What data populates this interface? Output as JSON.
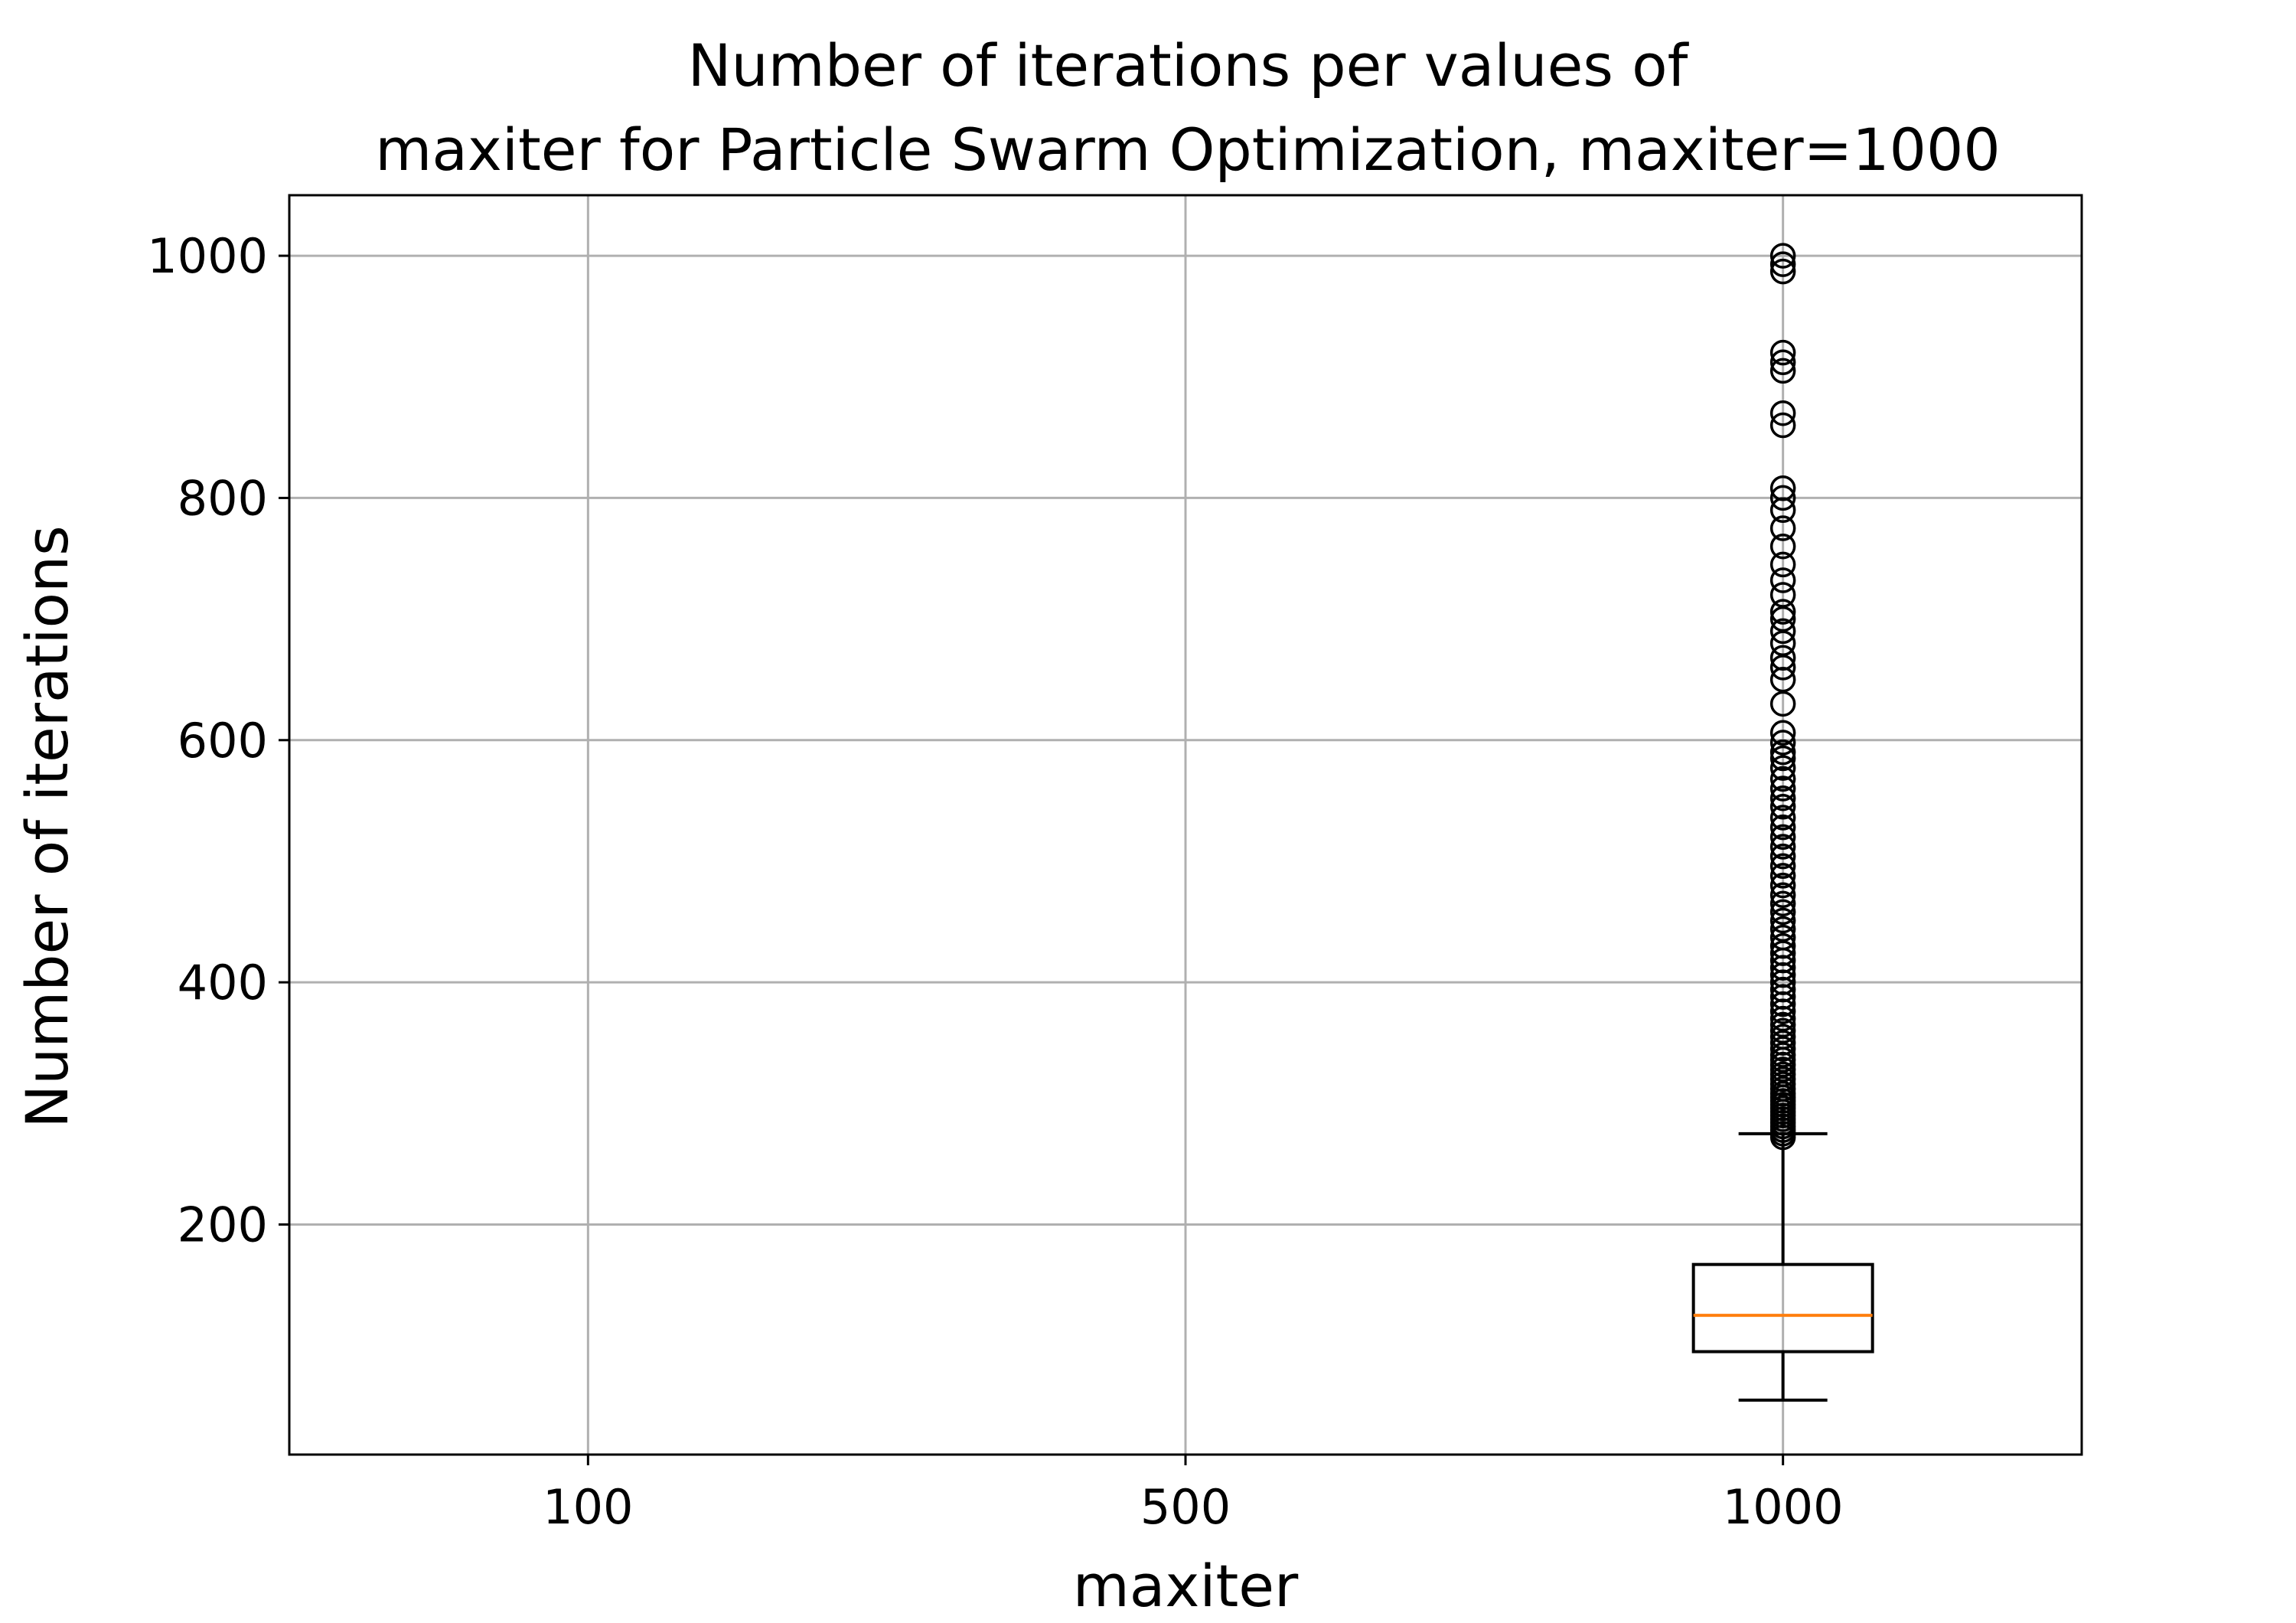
{
  "chart_data": {
    "type": "box",
    "title_line1": "Number of iterations per values of",
    "title_line2": "maxiter for Particle Swarm Optimization, maxiter=1000",
    "xlabel": "maxiter",
    "ylabel": "Number of iterations",
    "categories": [
      "100",
      "500",
      "1000"
    ],
    "ylim": [
      10,
      1050
    ],
    "yticks": [
      200,
      400,
      600,
      800,
      1000
    ],
    "grid": true,
    "box_color": "#000000",
    "median_color": "#ff7f0e",
    "boxes": [
      {
        "category": "1000",
        "whisker_low": 55,
        "q1": 95,
        "median": 125,
        "q3": 167,
        "whisker_high": 275,
        "outliers": [
          272,
          275,
          278,
          281,
          284,
          287,
          290,
          293,
          296,
          299,
          302,
          305,
          308,
          312,
          316,
          320,
          324,
          328,
          332,
          336,
          340,
          345,
          350,
          355,
          360,
          365,
          370,
          376,
          382,
          388,
          394,
          400,
          406,
          412,
          418,
          424,
          430,
          437,
          444,
          451,
          458,
          465,
          472,
          480,
          488,
          496,
          504,
          512,
          520,
          528,
          536,
          545,
          552,
          560,
          568,
          577,
          585,
          590,
          598,
          606,
          630,
          650,
          660,
          668,
          680,
          690,
          700,
          706,
          720,
          732,
          745,
          760,
          775,
          790,
          800,
          808,
          860,
          870,
          905,
          912,
          920,
          987,
          993,
          1000
        ]
      }
    ]
  }
}
